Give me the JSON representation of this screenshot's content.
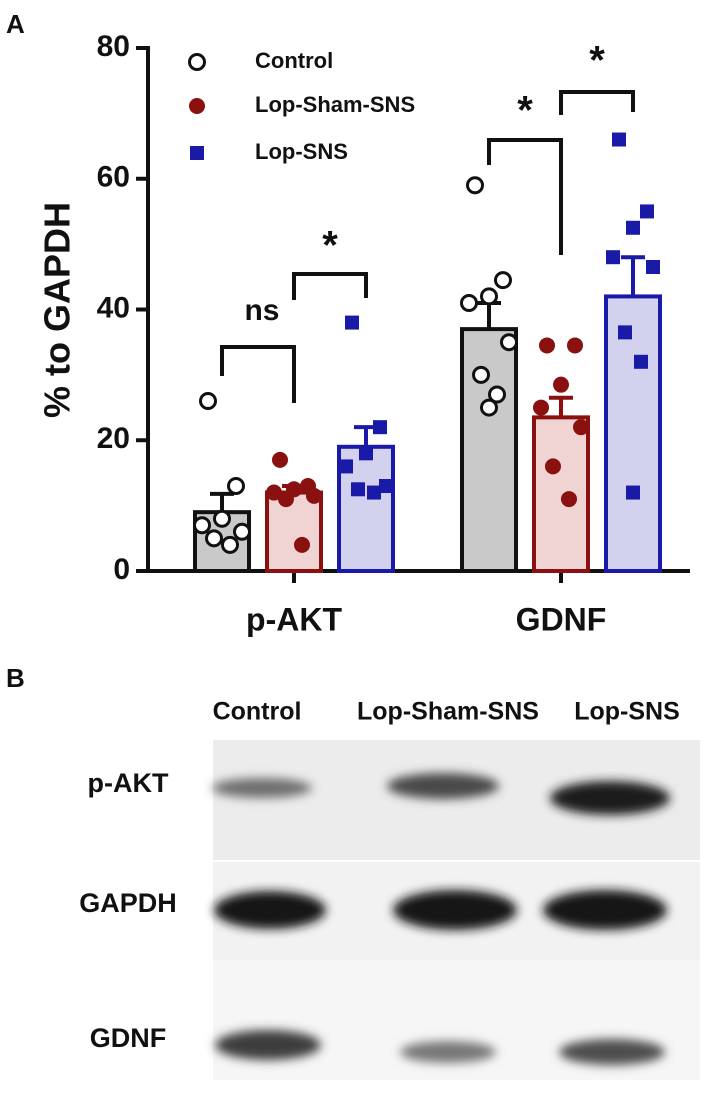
{
  "panel_labels": [
    "A",
    "B"
  ],
  "chart_data": {
    "type": "bar",
    "ylabel": "% to GAPDH",
    "categories": [
      "p-AKT",
      "GDNF"
    ],
    "ylim": [
      0,
      80
    ],
    "yticks": [
      0,
      20,
      40,
      60,
      80
    ],
    "legend": "upper left",
    "series": [
      {
        "name": "Control",
        "color": "#111111",
        "fill": "#c9c9c9",
        "marker": "open-circle",
        "values": [
          9,
          37
        ],
        "errors": [
          2.8,
          4
        ],
        "points": [
          [
            26,
            13,
            8,
            7,
            6,
            5,
            4
          ],
          [
            59,
            44.5,
            42,
            41,
            35,
            30,
            27,
            25
          ]
        ]
      },
      {
        "name": "Lop-Sham-SNS",
        "color": "#8b1010",
        "fill": "#f0d4d4",
        "marker": "circle",
        "values": [
          12,
          23.5
        ],
        "errors": [
          1,
          3
        ],
        "points": [
          [
            17,
            13,
            12.5,
            12,
            11.5,
            11,
            4
          ],
          [
            34.5,
            34.5,
            28.5,
            25,
            22,
            16,
            11
          ]
        ]
      },
      {
        "name": "Lop-SNS",
        "color": "#1a1aa8",
        "fill": "#d2d2ee",
        "marker": "square",
        "values": [
          19,
          42
        ],
        "errors": [
          3,
          6
        ],
        "points": [
          [
            38,
            22,
            18,
            16,
            13,
            12.5,
            12
          ],
          [
            66,
            55,
            52.5,
            48,
            46.5,
            36.5,
            32,
            12
          ]
        ]
      }
    ],
    "annotations": [
      "ns",
      "*",
      "*",
      "*"
    ]
  },
  "blot": {
    "columns": [
      "Control",
      "Lop-Sham-SNS",
      "Lop-SNS"
    ],
    "rows": [
      "p-AKT",
      "GAPDH",
      "GDNF"
    ]
  }
}
